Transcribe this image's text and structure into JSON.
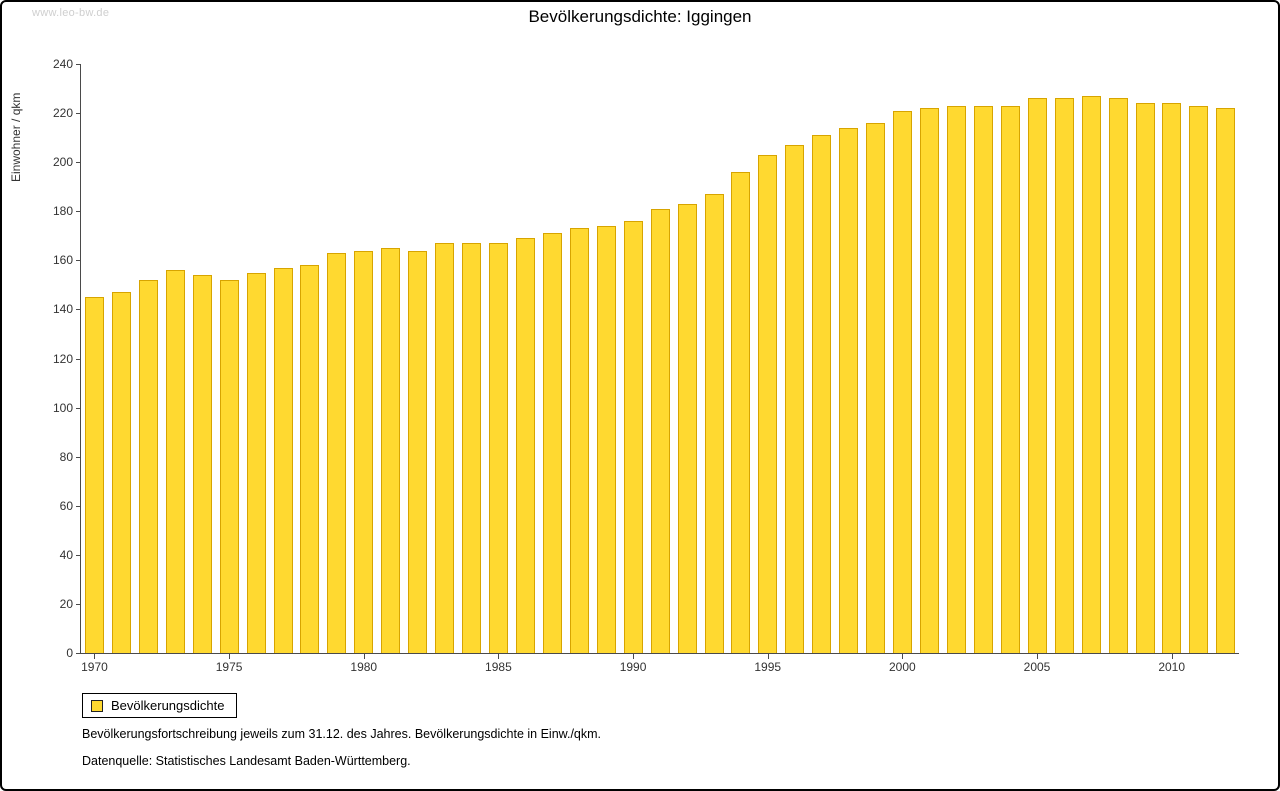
{
  "watermark": "www.leo-bw.de",
  "title": "Bevölkerungsdichte: Iggingen",
  "legend": {
    "label": "Bevölkerungsdichte"
  },
  "notes": {
    "line1": "Bevölkerungsfortschreibung jeweils zum 31.12. des Jahres. Bevölkerungsdichte in Einw./qkm.",
    "line2": "Datenquelle: Statistisches Landesamt Baden-Württemberg."
  },
  "colors": {
    "bar_fill": "#FFD930",
    "bar_stroke": "#D7A400",
    "axis": "#4a4a4a",
    "watermark": "#cfcfcf"
  },
  "chart_data": {
    "type": "bar",
    "title": "Bevölkerungsdichte: Iggingen",
    "xlabel": "",
    "ylabel": "Einwohner / qkm",
    "ylim": [
      0,
      240
    ],
    "yticks": [
      0,
      20,
      40,
      60,
      80,
      100,
      120,
      140,
      160,
      180,
      200,
      220,
      240
    ],
    "xticks": [
      1970,
      1975,
      1980,
      1985,
      1990,
      1995,
      2000,
      2005,
      2010
    ],
    "grid": false,
    "legend_position": "bottom-left",
    "series_name": "Bevölkerungsdichte",
    "x": [
      1970,
      1971,
      1972,
      1973,
      1974,
      1975,
      1976,
      1977,
      1978,
      1979,
      1980,
      1981,
      1982,
      1983,
      1984,
      1985,
      1986,
      1987,
      1988,
      1989,
      1990,
      1991,
      1992,
      1993,
      1994,
      1995,
      1996,
      1997,
      1998,
      1999,
      2000,
      2001,
      2002,
      2003,
      2004,
      2005,
      2006,
      2007,
      2008,
      2009,
      2010,
      2011,
      2012
    ],
    "values": [
      145,
      147,
      152,
      156,
      154,
      152,
      155,
      157,
      158,
      163,
      164,
      165,
      164,
      167,
      167,
      167,
      169,
      171,
      173,
      174,
      176,
      181,
      183,
      187,
      196,
      203,
      207,
      211,
      214,
      216,
      221,
      222,
      223,
      223,
      223,
      226,
      226,
      227,
      226,
      224,
      224,
      223,
      222
    ]
  }
}
